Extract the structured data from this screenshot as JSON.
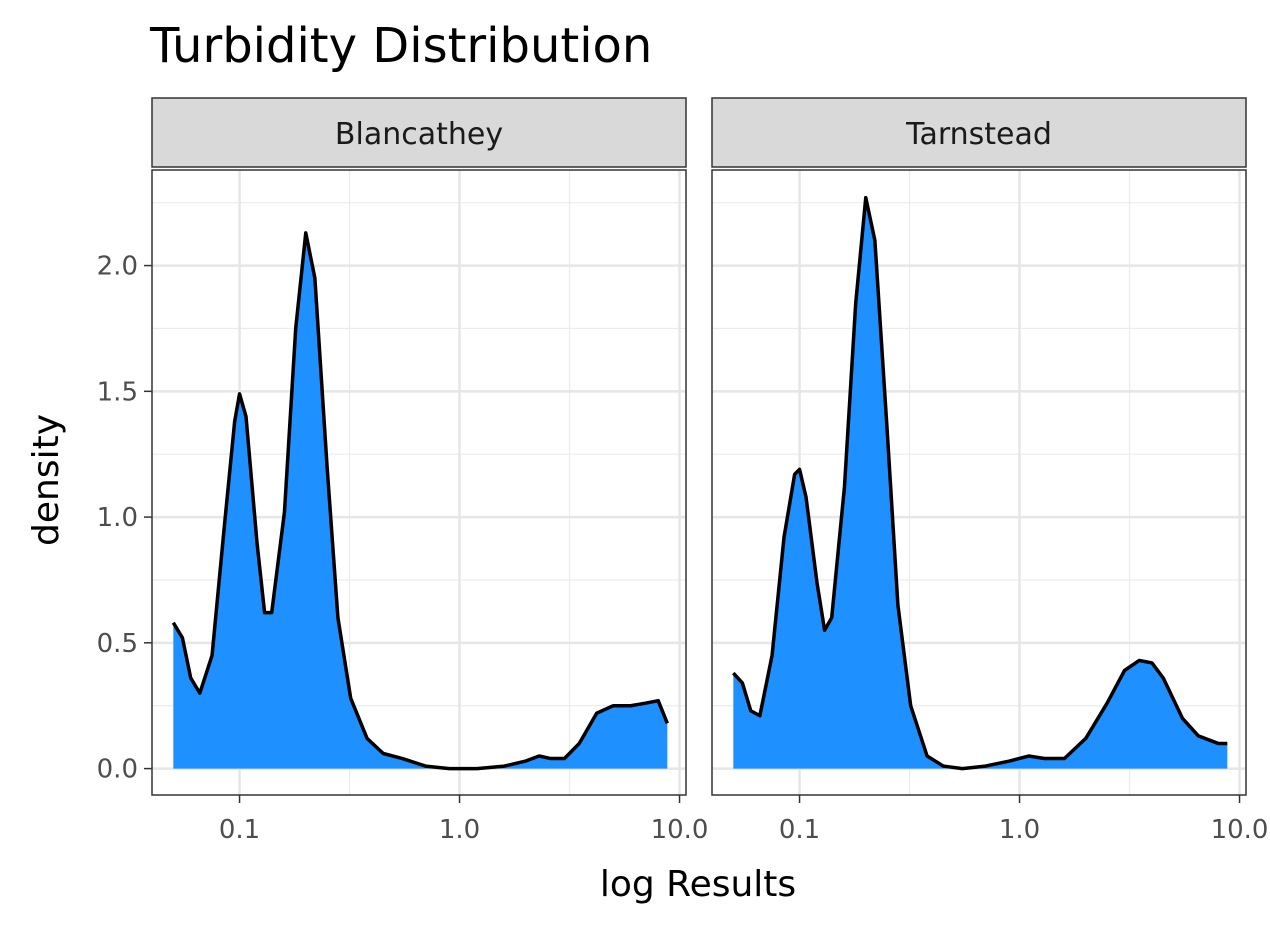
{
  "chart_data": {
    "type": "area",
    "title": "Turbidity Distribution",
    "xlabel": "log Results",
    "ylabel": "density",
    "x_scale": "log10",
    "xlim": [
      0.04,
      10.7
    ],
    "ylim": [
      -0.105,
      2.38
    ],
    "x_ticks": [
      0.1,
      1.0,
      10.0
    ],
    "x_tick_labels": [
      "0.1",
      "1.0",
      "10.0"
    ],
    "y_ticks": [
      0.0,
      0.5,
      1.0,
      1.5,
      2.0
    ],
    "y_tick_labels": [
      "0.0",
      "0.5",
      "1.0",
      "1.5",
      "2.0"
    ],
    "grid": true,
    "fill_color": "#1e90ff",
    "line_color": "#000000",
    "strip_color": "#d9d9d9",
    "panels": [
      {
        "label": "Blancathey",
        "x": [
          0.05,
          0.055,
          0.06,
          0.066,
          0.075,
          0.085,
          0.095,
          0.1,
          0.107,
          0.12,
          0.13,
          0.14,
          0.16,
          0.18,
          0.2,
          0.22,
          0.25,
          0.28,
          0.32,
          0.38,
          0.45,
          0.55,
          0.7,
          0.9,
          1.2,
          1.6,
          2.0,
          2.3,
          2.6,
          3.0,
          3.5,
          4.2,
          5.0,
          6.0,
          7.0,
          8.0,
          8.8
        ],
        "y": [
          0.58,
          0.52,
          0.36,
          0.3,
          0.45,
          0.95,
          1.38,
          1.49,
          1.4,
          0.9,
          0.62,
          0.62,
          1.02,
          1.75,
          2.13,
          1.95,
          1.2,
          0.6,
          0.28,
          0.12,
          0.06,
          0.04,
          0.01,
          0.0,
          0.0,
          0.01,
          0.03,
          0.05,
          0.04,
          0.04,
          0.1,
          0.22,
          0.25,
          0.25,
          0.26,
          0.27,
          0.18
        ]
      },
      {
        "label": "Tarnstead",
        "x": [
          0.05,
          0.055,
          0.06,
          0.066,
          0.075,
          0.085,
          0.095,
          0.1,
          0.107,
          0.12,
          0.13,
          0.14,
          0.16,
          0.18,
          0.2,
          0.22,
          0.25,
          0.28,
          0.32,
          0.38,
          0.45,
          0.55,
          0.7,
          0.9,
          1.1,
          1.3,
          1.6,
          2.0,
          2.5,
          3.0,
          3.5,
          4.0,
          4.5,
          5.5,
          6.5,
          8.0,
          8.8
        ],
        "y": [
          0.38,
          0.34,
          0.23,
          0.21,
          0.45,
          0.92,
          1.17,
          1.19,
          1.08,
          0.74,
          0.55,
          0.6,
          1.12,
          1.85,
          2.27,
          2.1,
          1.35,
          0.65,
          0.25,
          0.05,
          0.01,
          0.0,
          0.01,
          0.03,
          0.05,
          0.04,
          0.04,
          0.12,
          0.26,
          0.39,
          0.43,
          0.42,
          0.36,
          0.2,
          0.13,
          0.1,
          0.1
        ]
      }
    ]
  }
}
